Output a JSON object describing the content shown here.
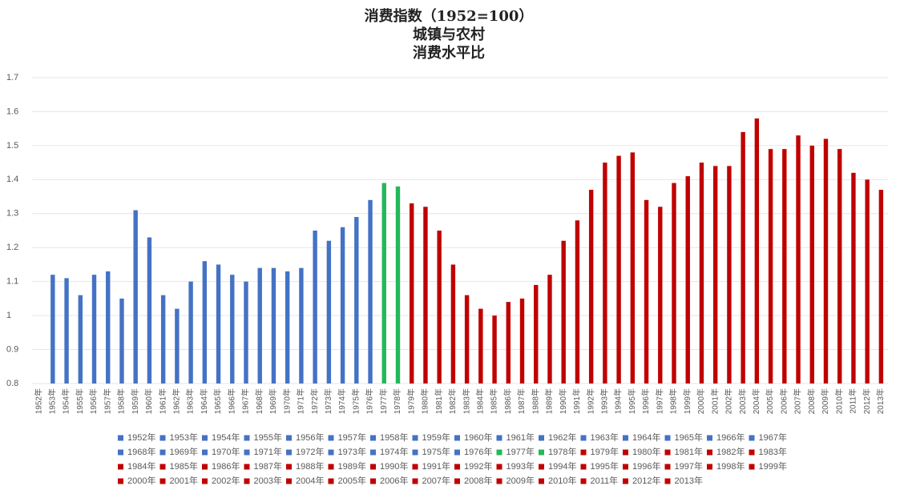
{
  "chart_data": {
    "type": "bar",
    "title": [
      "消费指数（1952=100）",
      "城镇与农村",
      "消费水平比"
    ],
    "categories": [
      "1952年",
      "1953年",
      "1954年",
      "1955年",
      "1956年",
      "1957年",
      "1958年",
      "1959年",
      "1960年",
      "1961年",
      "1962年",
      "1963年",
      "1964年",
      "1965年",
      "1966年",
      "1967年",
      "1968年",
      "1969年",
      "1970年",
      "1971年",
      "1972年",
      "1973年",
      "1974年",
      "1975年",
      "1976年",
      "1977年",
      "1978年",
      "1979年",
      "1980年",
      "1981年",
      "1982年",
      "1983年",
      "1984年",
      "1985年",
      "1986年",
      "1987年",
      "1988年",
      "1989年",
      "1990年",
      "1991年",
      "1992年",
      "1993年",
      "1994年",
      "1995年",
      "1996年",
      "1997年",
      "1998年",
      "1999年",
      "2000年",
      "2001年",
      "2002年",
      "2003年",
      "2004年",
      "2005年",
      "2006年",
      "2007年",
      "2008年",
      "2009年",
      "2010年",
      "2011年",
      "2012年",
      "2013年"
    ],
    "values": [
      null,
      1.12,
      1.11,
      1.06,
      1.12,
      1.13,
      1.05,
      1.31,
      1.23,
      1.06,
      1.02,
      1.1,
      1.16,
      1.15,
      1.12,
      1.1,
      1.14,
      1.14,
      1.13,
      1.14,
      1.25,
      1.22,
      1.26,
      1.29,
      1.34,
      1.39,
      1.38,
      1.33,
      1.32,
      1.25,
      1.15,
      1.06,
      1.02,
      1.0,
      1.04,
      1.05,
      1.09,
      1.12,
      1.22,
      1.28,
      1.37,
      1.45,
      1.47,
      1.48,
      1.34,
      1.32,
      1.39,
      1.41,
      1.45,
      1.44,
      1.44,
      1.54,
      1.58,
      1.49,
      1.49,
      1.53,
      1.5,
      1.52,
      1.49,
      1.42,
      1.4,
      1.37
    ],
    "colors": [
      "#4472c4",
      "#4472c4",
      "#4472c4",
      "#4472c4",
      "#4472c4",
      "#4472c4",
      "#4472c4",
      "#4472c4",
      "#4472c4",
      "#4472c4",
      "#4472c4",
      "#4472c4",
      "#4472c4",
      "#4472c4",
      "#4472c4",
      "#4472c4",
      "#4472c4",
      "#4472c4",
      "#4472c4",
      "#4472c4",
      "#4472c4",
      "#4472c4",
      "#4472c4",
      "#4472c4",
      "#4472c4",
      "#23b85a",
      "#23b85a",
      "#c00000",
      "#c00000",
      "#c00000",
      "#c00000",
      "#c00000",
      "#c00000",
      "#c00000",
      "#c00000",
      "#c00000",
      "#c00000",
      "#c00000",
      "#c00000",
      "#c00000",
      "#c00000",
      "#c00000",
      "#c00000",
      "#c00000",
      "#c00000",
      "#c00000",
      "#c00000",
      "#c00000",
      "#c00000",
      "#c00000",
      "#c00000",
      "#c00000",
      "#c00000",
      "#c00000",
      "#c00000",
      "#c00000",
      "#c00000",
      "#c00000",
      "#c00000",
      "#c00000",
      "#c00000",
      "#c00000"
    ],
    "ylim": [
      0.8,
      1.7
    ],
    "yticks": [
      0.8,
      0.9,
      1,
      1.1,
      1.2,
      1.3,
      1.4,
      1.5,
      1.6,
      1.7
    ],
    "grid": true
  }
}
